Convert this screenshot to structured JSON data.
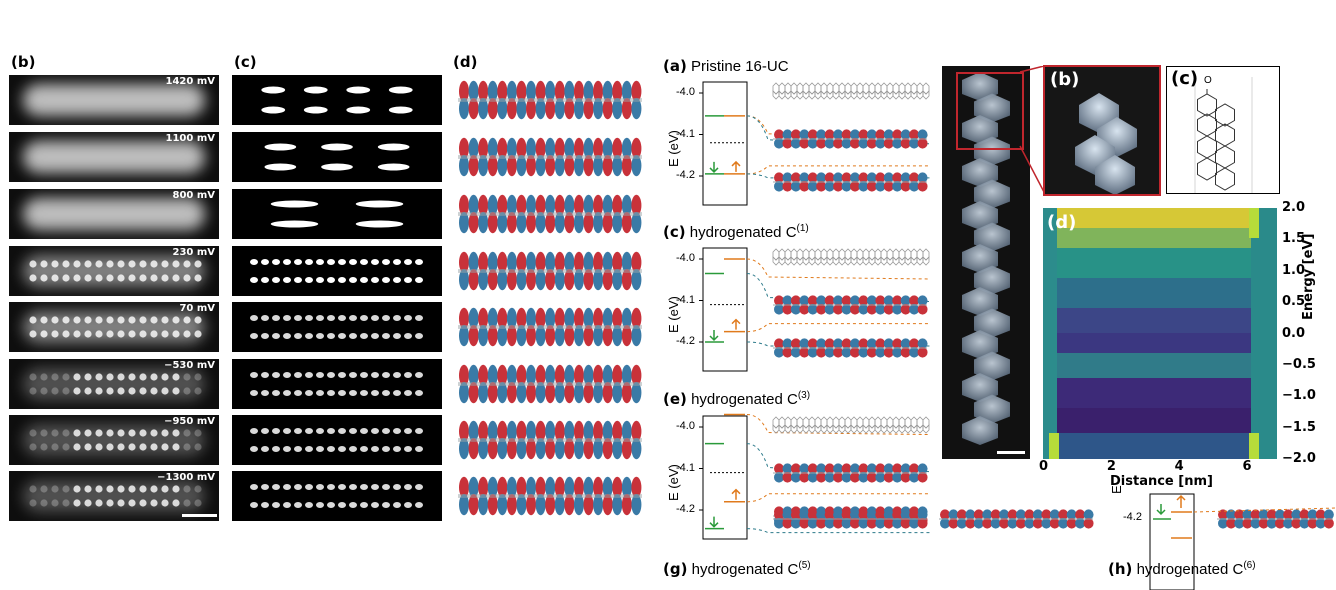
{
  "left_panels": {
    "label_b": "(b)",
    "label_c": "(c)",
    "label_d": "(d)",
    "voltages": [
      "1420 mV",
      "1100 mV",
      "800 mV",
      "230 mV",
      "70 mV",
      "−530 mV",
      "−950 mV",
      "−1300 mV"
    ]
  },
  "levels": {
    "ylabel": "E (eV)",
    "panel_a": {
      "title_tag": "(a)",
      "title_text": "Pristine 16-UC",
      "ticks": [
        "-4.0",
        "-4.1",
        "-4.2"
      ]
    },
    "panel_c": {
      "title_tag": "(c)",
      "title_text": "hydrogenated C",
      "sup": "(1)",
      "ticks": [
        "-4.0",
        "-4.1",
        "-4.2"
      ]
    },
    "panel_e": {
      "title_tag": "(e)",
      "title_text": "hydrogenated C",
      "sup": "(3)",
      "ticks": [
        "-4.0",
        "-4.1",
        "-4.2"
      ]
    },
    "panel_g": {
      "title_tag": "(g)",
      "title_text": "hydrogenated C",
      "sup": "(5)"
    },
    "panel_h": {
      "title_tag": "(h)",
      "title_text": "hydrogenated C",
      "sup": "(6)",
      "tick": "-4.2",
      "ylabel": "E"
    }
  },
  "right_panels": {
    "label_b": "(b)",
    "label_c": "(c)",
    "label_d": "(d)",
    "colorbar": {
      "label": "Energy [eV]",
      "ticks": [
        "2.0",
        "1.5",
        "1.0",
        "0.5",
        "0.0",
        "−0.5",
        "−1.0",
        "−1.5",
        "−2.0"
      ]
    },
    "xaxis": {
      "label": "Distance [nm]",
      "ticks": [
        "0",
        "2",
        "4",
        "6"
      ]
    },
    "molecule_atom": "O"
  },
  "colors": {
    "stm_glow": "#d9d9d9",
    "orb_red": "#c8323a",
    "orb_blue": "#3a7aa6",
    "level_green": "#2a9a3a",
    "level_orange": "#e07a1c",
    "map_yellow": "#f5e623",
    "map_dark": "#3b1d6e"
  }
}
